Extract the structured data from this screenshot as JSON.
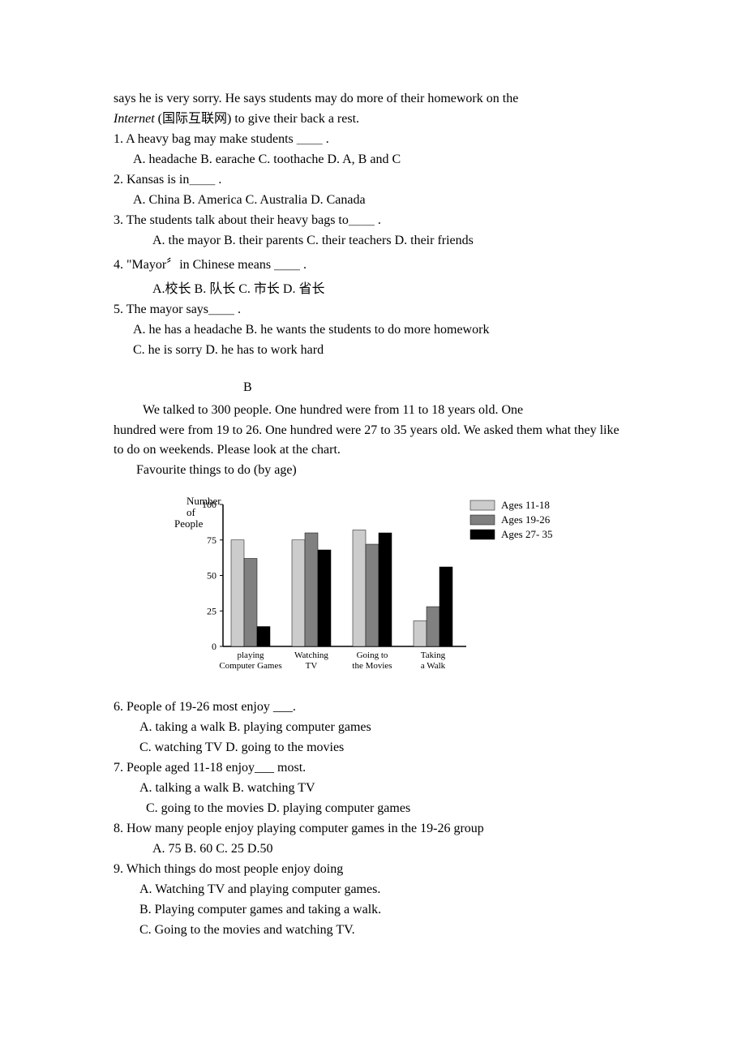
{
  "top_text_1": "says he is very sorry. He says students may do more of their homework on the ",
  "top_text_2a": "Internet",
  "top_text_2b": " (国际互联网) to give their back a rest.",
  "q1": "1. A heavy bag may make students ＿＿ .",
  "q1_opts": "A. headache    B. earache     C. toothache   D. A, B and C",
  "q2": "2. Kansas is in＿＿ .",
  "q2_opts": "A. China   B. America    C. Australia    D. Canada",
  "q3": "3. The students talk about their heavy bags to＿＿ .",
  "q3_opts": "A. the mayor   B. their parents   C. their teachers D. their friends",
  "q4": "4.  \"Mayor〞in Chinese means ＿＿ .",
  "q4_opts": "A.校长     B. 队长    C. 市长   D. 省长",
  "q5": "5. The mayor says＿＿ .",
  "q5_opt_ab": "A. he has a headache  B. he wants the students to do more homework",
  "q5_opt_cd": "C. he is sorry  D. he has to work hard",
  "section_b": "B",
  "pb_1": "We talked to 300 people. One hundred were from 11 to 18 years old. One",
  "pb_2": "hundred were from 19 to 26. One hundred were 27 to 35 years old. We asked them what they like to do on weekends. Please look at the chart.",
  "pb_3": "Favourite things to do (by age)",
  "chart": {
    "y_label_1": "Number",
    "y_label_2": "of",
    "y_label_3": "People",
    "y_ticks": [
      "100",
      "75",
      "50",
      "25",
      "0"
    ],
    "legend": [
      "Ages 11-18",
      "Ages 19-26",
      "Ages 27- 35"
    ],
    "categories": [
      {
        "line1": "playing",
        "line2": "Computer Games"
      },
      {
        "line1": "Watching",
        "line2": "TV"
      },
      {
        "line1": "Going to",
        "line2": "the Movies"
      },
      {
        "line1": "Taking",
        "line2": "a Walk"
      }
    ],
    "values": [
      [
        75,
        62,
        14
      ],
      [
        75,
        80,
        68
      ],
      [
        82,
        72,
        80
      ],
      [
        18,
        28,
        56
      ]
    ],
    "colors": [
      "#cccccc",
      "#808080",
      "#000000"
    ],
    "axis_color": "#000000",
    "y_max": 100
  },
  "q6": "6. People of 19-26 most enjoy ___.",
  "q6_opt_ab": "A.  taking a walk               B. playing computer games",
  "q6_opt_cd": "C.  watching TV              D. going to the movies",
  "q7": "7. People aged 11-18 enjoy___ most.",
  "q7_opt_ab": "A.  talking a walk             B. watching TV",
  "q7_opt_cd": "C. going to the movies           D. playing computer games",
  "q8": "8. How many people enjoy playing computer games in the 19-26 group",
  "q8_opts": "A. 75        B. 60          C. 25      D.50",
  "q9": "9. Which things do most people enjoy doing",
  "q9_opt_a": "A. Watching TV and playing computer games.",
  "q9_opt_b": "B. Playing computer games and taking a walk.",
  "q9_opt_c": "C. Going to the movies and watching TV."
}
